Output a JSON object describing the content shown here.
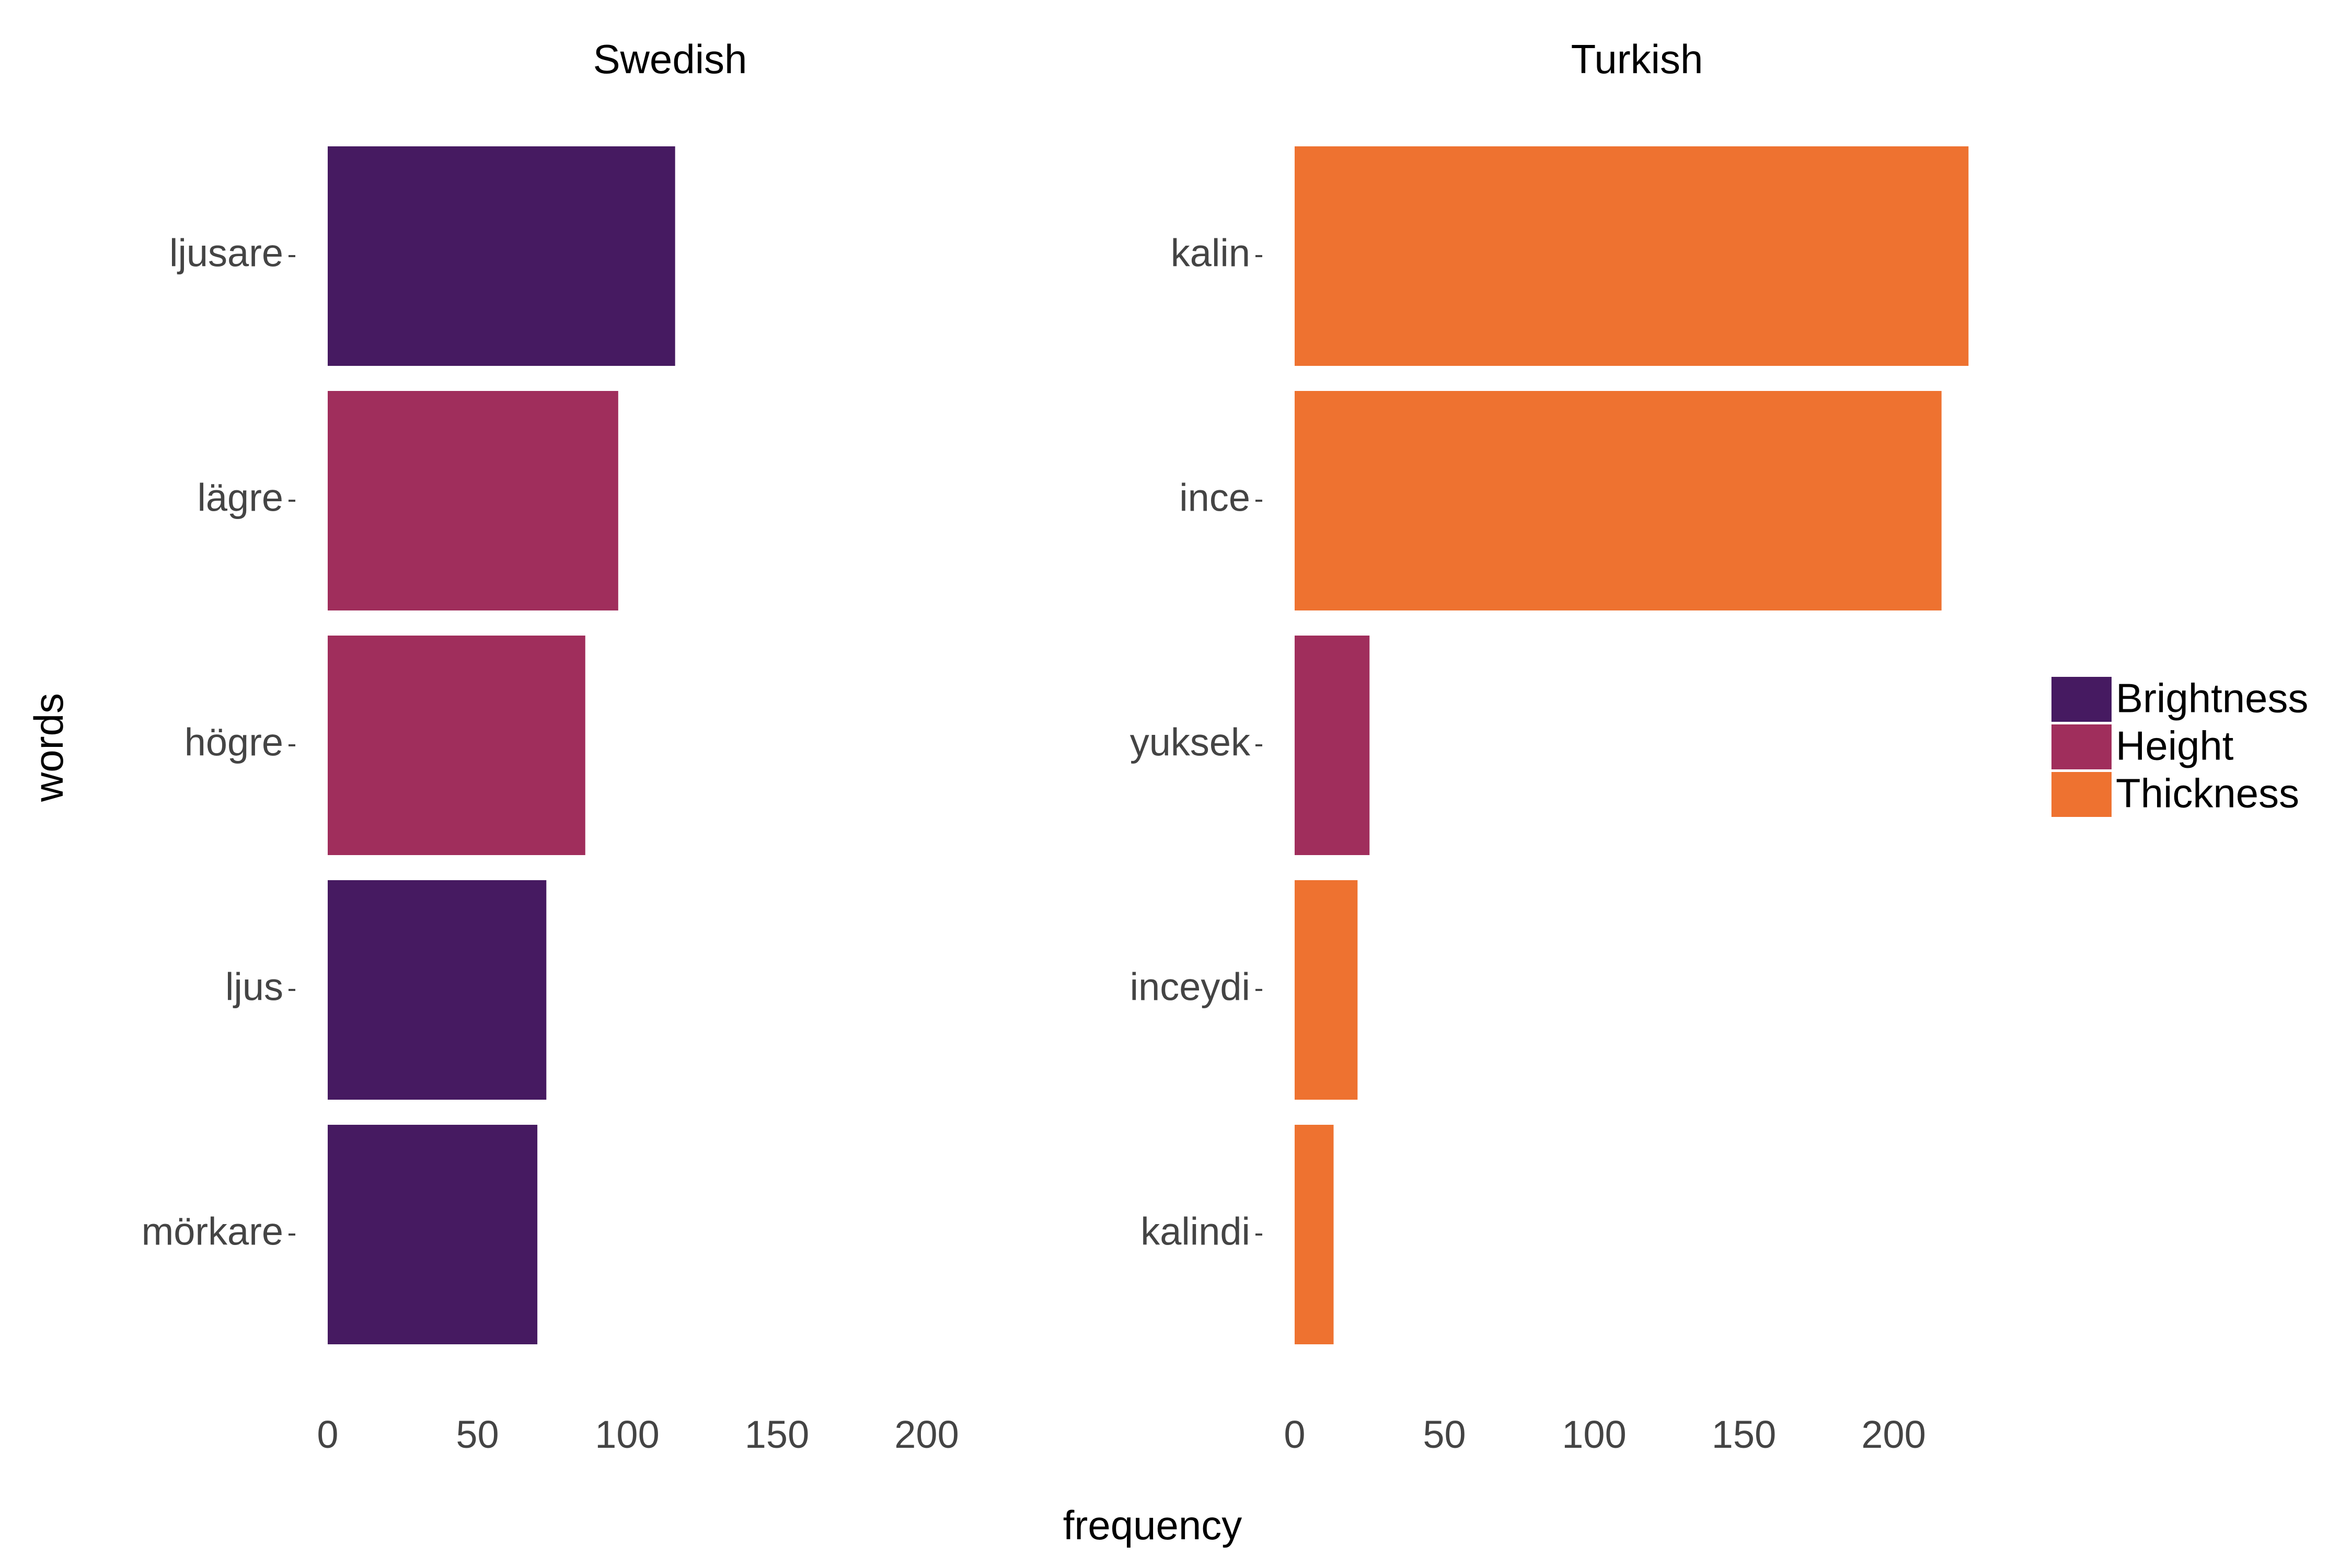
{
  "chart_data": {
    "type": "bar",
    "orientation": "horizontal",
    "xlabel": "frequency",
    "ylabel": "words",
    "xlim": [
      0,
      210
    ],
    "xticks": [
      0,
      50,
      100,
      150,
      200
    ],
    "grid": false,
    "legend_position": "right",
    "legend": [
      {
        "label": "Brightness",
        "color": "#461A61"
      },
      {
        "label": "Height",
        "color": "#A02E5C"
      },
      {
        "label": "Thickness",
        "color": "#EE7230"
      }
    ],
    "facets": [
      {
        "title": "Swedish",
        "bars": [
          {
            "word": "ljusare",
            "value": 116,
            "category": "Brightness"
          },
          {
            "word": "lägre",
            "value": 97,
            "category": "Height"
          },
          {
            "word": "högre",
            "value": 86,
            "category": "Height"
          },
          {
            "word": "ljus",
            "value": 73,
            "category": "Brightness"
          },
          {
            "word": "mörkare",
            "value": 70,
            "category": "Brightness"
          }
        ]
      },
      {
        "title": "Turkish",
        "bars": [
          {
            "word": "kalin",
            "value": 225,
            "category": "Thickness"
          },
          {
            "word": "ince",
            "value": 216,
            "category": "Thickness"
          },
          {
            "word": "yuksek",
            "value": 25,
            "category": "Height"
          },
          {
            "word": "inceydi",
            "value": 21,
            "category": "Thickness"
          },
          {
            "word": "kalindi",
            "value": 13,
            "category": "Thickness"
          }
        ]
      }
    ]
  }
}
